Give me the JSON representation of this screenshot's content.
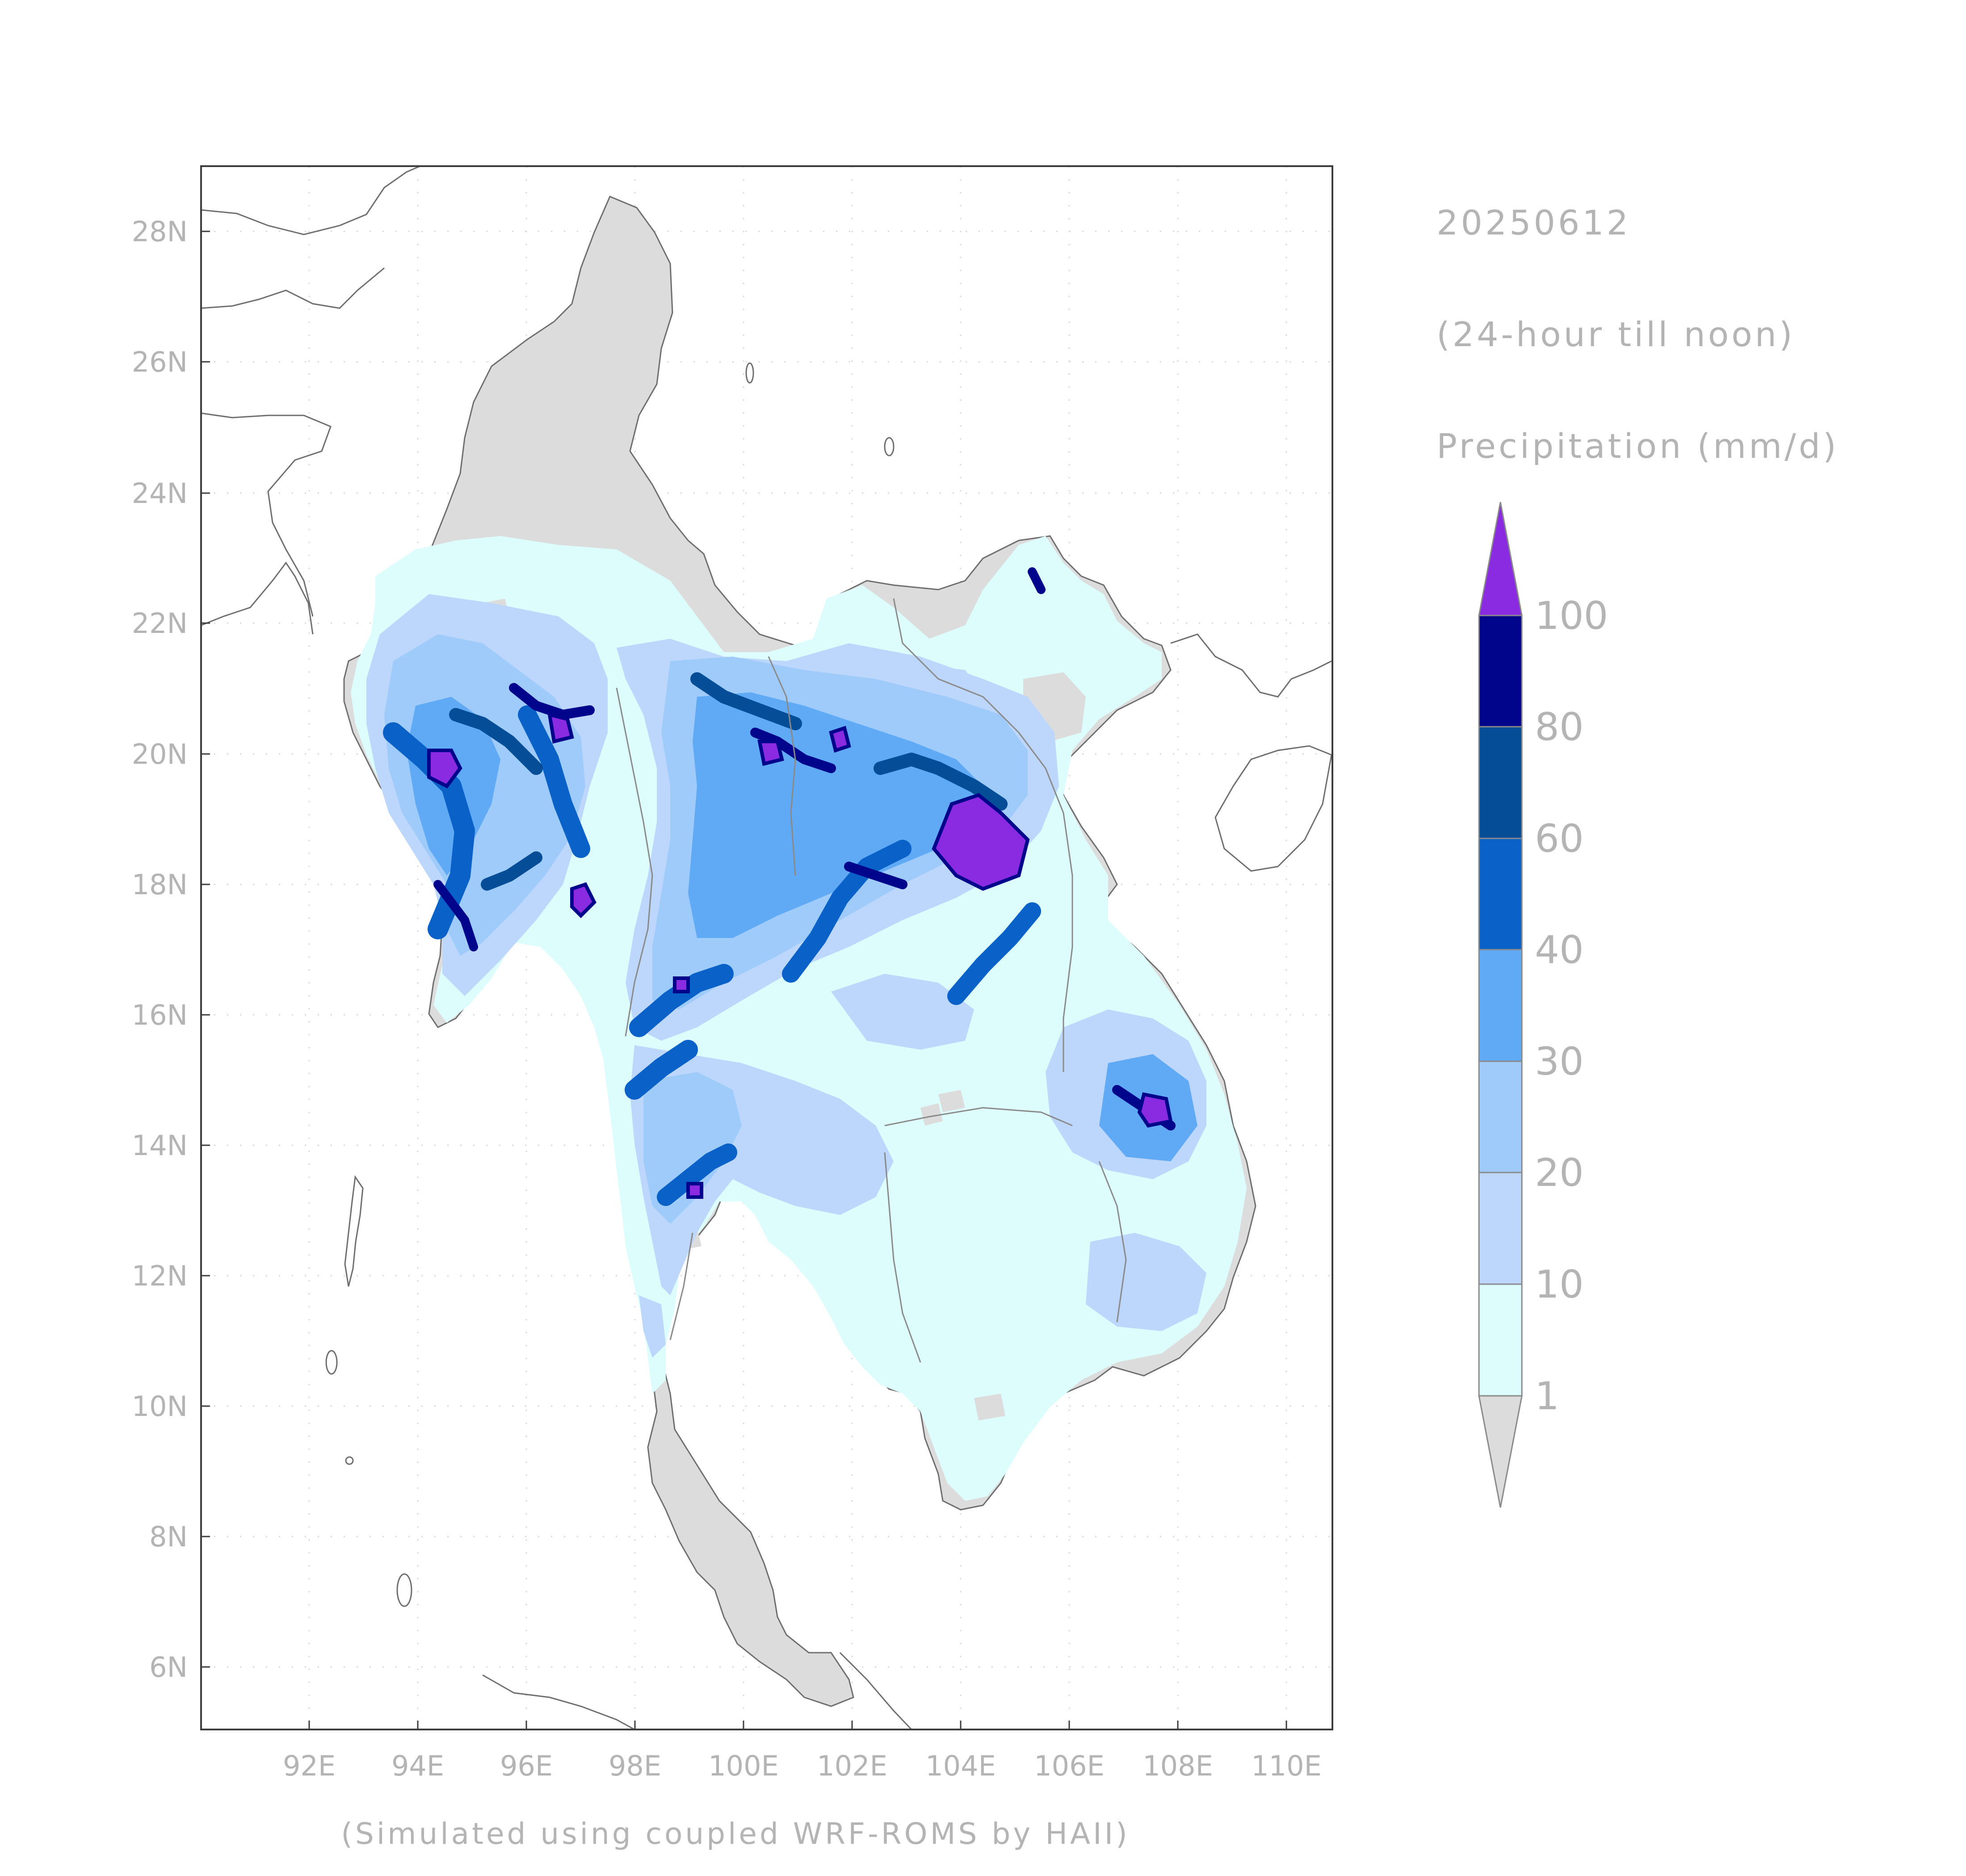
{
  "map": {
    "lat_ticks": [
      "28N",
      "26N",
      "24N",
      "22N",
      "20N",
      "18N",
      "16N",
      "14N",
      "12N",
      "10N",
      "8N",
      "6N"
    ],
    "lon_ticks": [
      "92E",
      "94E",
      "96E",
      "98E",
      "100E",
      "102E",
      "104E",
      "106E",
      "108E",
      "110E"
    ],
    "credit": "(Simulated using coupled WRF-ROMS by HAII)"
  },
  "header": {
    "date": "20250612",
    "period": "(24-hour till noon)",
    "variable": "Precipitation (mm/d)"
  },
  "legend": {
    "levels": [
      "1",
      "10",
      "20",
      "30",
      "40",
      "60",
      "80",
      "100"
    ],
    "colors": {
      "below_1": "#dcdcdc",
      "1_10": "#ddfdfd",
      "10_20": "#bdd6fb",
      "20_30": "#9ecbfa",
      "30_40": "#5fa9f5",
      "40_60": "#0a62c8",
      "60_80": "#054e97",
      "80_100": "#01058c",
      "above_100": "#8a2be2"
    }
  },
  "colors": {
    "land_dry": "#dcdcdc",
    "coastline": "#6e6e6e",
    "frame": "#3c3c3c",
    "label": "#b4b4b4"
  }
}
